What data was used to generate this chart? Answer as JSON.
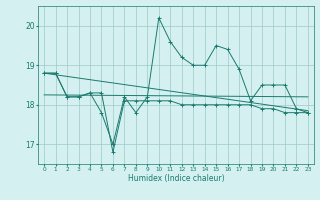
{
  "title": "",
  "xlabel": "Humidex (Indice chaleur)",
  "bg_color": "#d4f0f0",
  "grid_color": "#a0c8c8",
  "line_color": "#1a7a6e",
  "x_values": [
    0,
    1,
    2,
    3,
    4,
    5,
    6,
    7,
    8,
    9,
    10,
    11,
    12,
    13,
    14,
    15,
    16,
    17,
    18,
    19,
    20,
    21,
    22,
    23
  ],
  "series1": [
    18.8,
    18.8,
    18.2,
    18.2,
    18.3,
    18.3,
    16.8,
    18.1,
    18.1,
    18.1,
    18.1,
    18.1,
    18.0,
    18.0,
    18.0,
    18.0,
    18.0,
    18.0,
    18.0,
    17.9,
    17.9,
    17.8,
    17.8,
    17.8
  ],
  "series2": [
    18.8,
    18.8,
    18.2,
    18.2,
    18.3,
    17.8,
    17.0,
    18.2,
    17.8,
    18.2,
    20.2,
    19.6,
    19.2,
    19.0,
    19.0,
    19.5,
    19.4,
    18.9,
    18.1,
    18.5,
    18.5,
    18.5,
    17.9,
    17.8
  ],
  "series3_x": [
    0,
    23
  ],
  "series3_y": [
    18.8,
    17.85
  ],
  "series4_x": [
    0,
    23
  ],
  "series4_y": [
    18.25,
    18.2
  ],
  "ylim": [
    16.5,
    20.5
  ],
  "xlim": [
    -0.5,
    23.5
  ],
  "yticks": [
    17,
    18,
    19,
    20
  ],
  "xticks": [
    0,
    1,
    2,
    3,
    4,
    5,
    6,
    7,
    8,
    9,
    10,
    11,
    12,
    13,
    14,
    15,
    16,
    17,
    18,
    19,
    20,
    21,
    22,
    23
  ],
  "xtick_labels": [
    "0",
    "1",
    "2",
    "3",
    "4",
    "5",
    "6",
    "7",
    "8",
    "9",
    "10",
    "11",
    "12",
    "13",
    "14",
    "15",
    "16",
    "17",
    "18",
    "19",
    "20",
    "21",
    "22",
    "23"
  ]
}
